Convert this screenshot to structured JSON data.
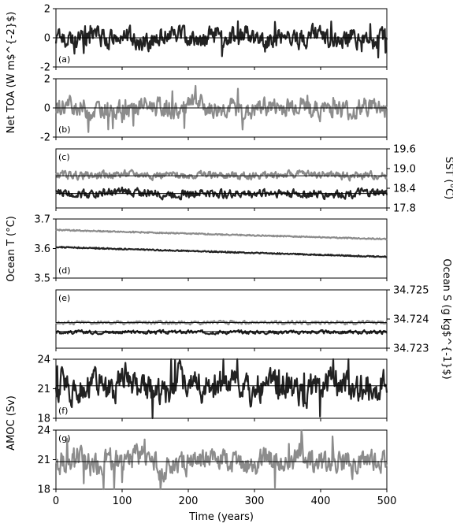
{
  "figure": {
    "xlabel": "Time (years)",
    "left_labels": {
      "toa": "Net TOA (W m$^{-2}$)",
      "ocean_t": "Ocean T (°C)",
      "amoc": "AMOC (Sv)"
    },
    "right_labels": {
      "sst": "SST (°C)",
      "ocean_s": "Ocean S (g kg$^{-1}$)"
    }
  },
  "chart_data": [
    {
      "id": "a",
      "panel_label": "(a)",
      "type": "line",
      "xlim": [
        0,
        500
      ],
      "ylim": [
        -2,
        2
      ],
      "yticks": [
        "-2",
        "0",
        "2"
      ],
      "ytick_values": [
        -2,
        0,
        2
      ],
      "yaxis": "left",
      "series": [
        {
          "color": "#222222",
          "mean": 0.0,
          "amplitude": 0.55,
          "spikes": true,
          "values": [
            0.12,
            -0.35,
            0.48,
            -0.22,
            0.31,
            -0.58,
            0.05,
            0.62,
            -0.41,
            0.18,
            -0.07,
            0.39,
            -0.66,
            0.24,
            -0.19,
            0.53,
            -0.31,
            0.09,
            -0.47,
            0.35
          ]
        }
      ],
      "reference_line": 0
    },
    {
      "id": "b",
      "panel_label": "(b)",
      "type": "line",
      "xlim": [
        0,
        500
      ],
      "ylim": [
        -2,
        2
      ],
      "yticks": [
        "-2",
        "0",
        "2"
      ],
      "ytick_values": [
        -2,
        0,
        2
      ],
      "yaxis": "left",
      "series": [
        {
          "color": "#8c8c8c",
          "mean": 0.0,
          "amplitude": 0.55,
          "spikes": true,
          "values": [
            -0.15,
            0.42,
            -0.37,
            0.21,
            -0.55,
            0.33,
            0.08,
            -0.44,
            0.57,
            -0.26,
            0.14,
            -0.61,
            0.29,
            -0.03,
            0.46,
            -0.32,
            0.19,
            -0.49,
            0.38,
            -0.11
          ]
        }
      ],
      "reference_line": 0
    },
    {
      "id": "c",
      "panel_label": "(c)",
      "type": "line",
      "xlim": [
        0,
        500
      ],
      "ylim": [
        17.8,
        19.6
      ],
      "yticks": [
        "19.6",
        "19.0",
        "18.4",
        "17.8"
      ],
      "ytick_values": [
        19.6,
        19.0,
        18.4,
        17.8
      ],
      "yaxis": "right",
      "series": [
        {
          "color": "#8c8c8c",
          "mean": 18.8,
          "amplitude": 0.1,
          "values": [
            18.82,
            18.78,
            18.85,
            18.79,
            18.83,
            18.76,
            18.81,
            18.86,
            18.77,
            18.8
          ]
        },
        {
          "color": "#222222",
          "mean": 18.25,
          "amplitude": 0.11,
          "values": [
            18.28,
            18.22,
            18.31,
            18.19,
            18.26,
            18.21,
            18.29,
            18.17,
            18.24,
            18.27
          ]
        }
      ],
      "reference_lines": [
        18.78,
        18.24
      ]
    },
    {
      "id": "d",
      "panel_label": "(d)",
      "type": "line",
      "xlim": [
        0,
        500
      ],
      "ylim": [
        3.5,
        3.7
      ],
      "yticks": [
        "3.7",
        "3.6",
        "3.5"
      ],
      "ytick_values": [
        3.7,
        3.6,
        3.5
      ],
      "yaxis": "left",
      "series": [
        {
          "color": "#8c8c8c",
          "trend": [
            3.663,
            3.632
          ],
          "amplitude": 0.002
        },
        {
          "color": "#222222",
          "trend": [
            3.605,
            3.572
          ],
          "amplitude": 0.002
        }
      ]
    },
    {
      "id": "e",
      "panel_label": "(e)",
      "type": "line",
      "xlim": [
        0,
        500
      ],
      "ylim": [
        34.723,
        34.725
      ],
      "yticks": [
        "34.725",
        "34.724",
        "34.723"
      ],
      "ytick_values": [
        34.725,
        34.724,
        34.723
      ],
      "yaxis": "right",
      "series": [
        {
          "color": "#8c8c8c",
          "mean": 34.72388,
          "amplitude": 5e-05
        },
        {
          "color": "#222222",
          "mean": 34.72355,
          "amplitude": 5e-05
        }
      ],
      "reference_lines": [
        34.72388,
        34.72357
      ]
    },
    {
      "id": "f",
      "panel_label": "(f)",
      "type": "line",
      "xlim": [
        0,
        500
      ],
      "ylim": [
        18,
        24
      ],
      "yticks": [
        "24",
        "21",
        "18"
      ],
      "ytick_values": [
        24,
        21,
        18
      ],
      "yaxis": "left",
      "series": [
        {
          "color": "#222222",
          "mean": 21.3,
          "amplitude": 1.3,
          "spikes": true,
          "values": [
            22.1,
            20.8,
            21.9,
            20.3,
            22.6,
            21.0,
            19.9,
            22.3,
            21.4,
            20.5,
            22.8,
            20.2,
            21.7,
            22.0,
            19.8,
            21.5,
            22.4,
            20.6,
            21.2,
            22.2
          ]
        }
      ],
      "reference_line": 21.3
    },
    {
      "id": "g",
      "panel_label": "(g)",
      "type": "line",
      "xlim": [
        0,
        500
      ],
      "ylim": [
        18,
        24
      ],
      "yticks": [
        "24",
        "21",
        "18"
      ],
      "ytick_values": [
        24,
        21,
        18
      ],
      "yaxis": "left",
      "series": [
        {
          "color": "#8c8c8c",
          "mean": 20.8,
          "amplitude": 1.0,
          "spikes": true,
          "values": [
            20.4,
            21.6,
            19.9,
            21.2,
            20.7,
            22.0,
            19.5,
            21.0,
            20.3,
            21.8,
            20.9,
            19.7,
            21.4,
            20.1,
            22.2,
            20.6,
            21.1,
            19.8,
            21.5,
            20.5
          ]
        }
      ],
      "reference_line": 20.8
    }
  ],
  "xaxis": {
    "ticks": [
      "0",
      "100",
      "200",
      "300",
      "400",
      "500"
    ],
    "tick_values": [
      0,
      100,
      200,
      300,
      400,
      500
    ]
  }
}
